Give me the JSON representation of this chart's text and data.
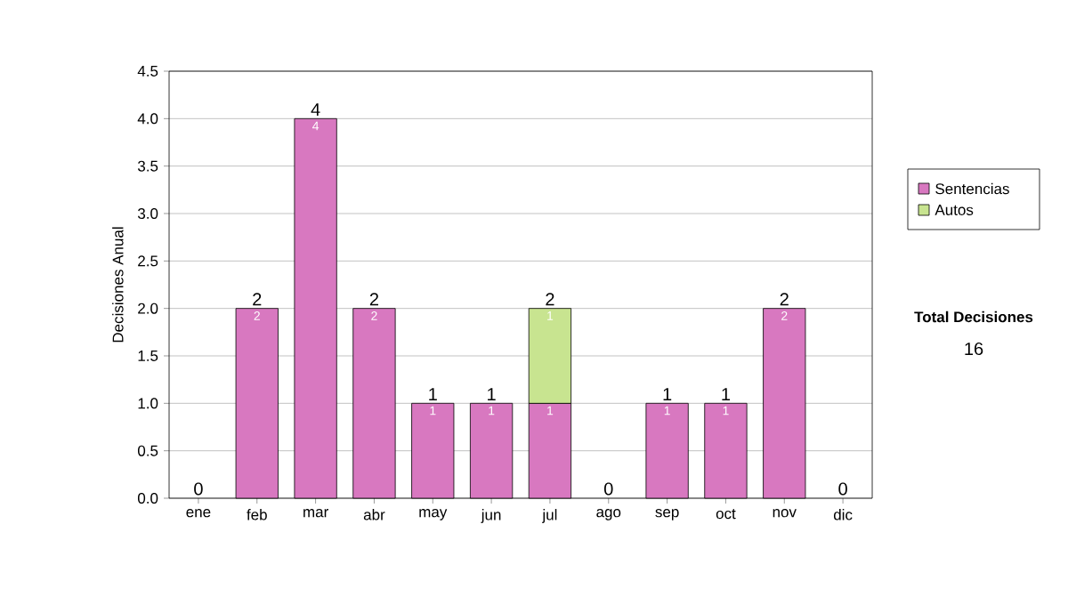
{
  "chart_data": {
    "type": "bar",
    "stacked": true,
    "ylabel": "Decisiones Anual",
    "categories": [
      "ene",
      "feb",
      "mar",
      "abr",
      "may",
      "jun",
      "jul",
      "ago",
      "sep",
      "oct",
      "nov",
      "dic"
    ],
    "series": [
      {
        "name": "Sentencias",
        "color": "#d878c0",
        "values": [
          0,
          2,
          4,
          2,
          1,
          1,
          1,
          0,
          1,
          1,
          2,
          0
        ],
        "value_labels": [
          null,
          "2",
          "4",
          "2",
          "1",
          "1",
          "1",
          null,
          "1",
          "1",
          "2",
          null
        ]
      },
      {
        "name": "Autos",
        "color": "#c8e490",
        "values": [
          0,
          0,
          0,
          0,
          0,
          0,
          1,
          0,
          0,
          0,
          0,
          0
        ],
        "value_labels": [
          null,
          null,
          null,
          null,
          null,
          null,
          "1",
          null,
          null,
          null,
          null,
          null
        ]
      }
    ],
    "totals": [
      "0",
      "2",
      "4",
      "2",
      "1",
      "1",
      "2",
      "0",
      "1",
      "1",
      "2",
      "0"
    ],
    "ylim": [
      0,
      4.5
    ],
    "yticks": [
      {
        "value": 0,
        "label": "0.0"
      },
      {
        "value": 0.5,
        "label": "0.5"
      },
      {
        "value": 1,
        "label": "1.0"
      },
      {
        "value": 1.5,
        "label": "1.5"
      },
      {
        "value": 2,
        "label": "2.0"
      },
      {
        "value": 2.5,
        "label": "2.5"
      },
      {
        "value": 3,
        "label": "3.0"
      },
      {
        "value": 3.5,
        "label": "3.5"
      },
      {
        "value": 4,
        "label": "4.0"
      },
      {
        "value": 4.5,
        "label": "4.5"
      }
    ],
    "grid": "y",
    "legend": "right",
    "annotations": [
      "Total Decisiones",
      "16"
    ]
  }
}
